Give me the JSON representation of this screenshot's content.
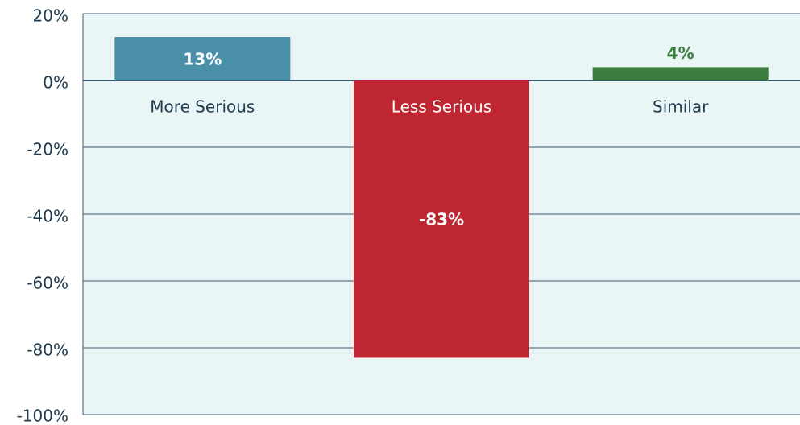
{
  "chart_data": {
    "type": "bar",
    "categories": [
      "More Serious",
      "Less Serious",
      "Similar"
    ],
    "values": [
      13,
      -83,
      4
    ],
    "value_labels": [
      "13%",
      "-83%",
      "4%"
    ],
    "colors": [
      "#4a8fa8",
      "#be2732",
      "#3a7d3e"
    ],
    "ylim": [
      -100,
      20
    ],
    "yticks": [
      {
        "value": 20,
        "label": "20%"
      },
      {
        "value": 0,
        "label": "0%"
      },
      {
        "value": -20,
        "label": "-20%"
      },
      {
        "value": -40,
        "label": "-40%"
      },
      {
        "value": -60,
        "label": "-60%"
      },
      {
        "value": -80,
        "label": "-80%"
      },
      {
        "value": -100,
        "label": "-100%"
      }
    ],
    "grid": true
  }
}
